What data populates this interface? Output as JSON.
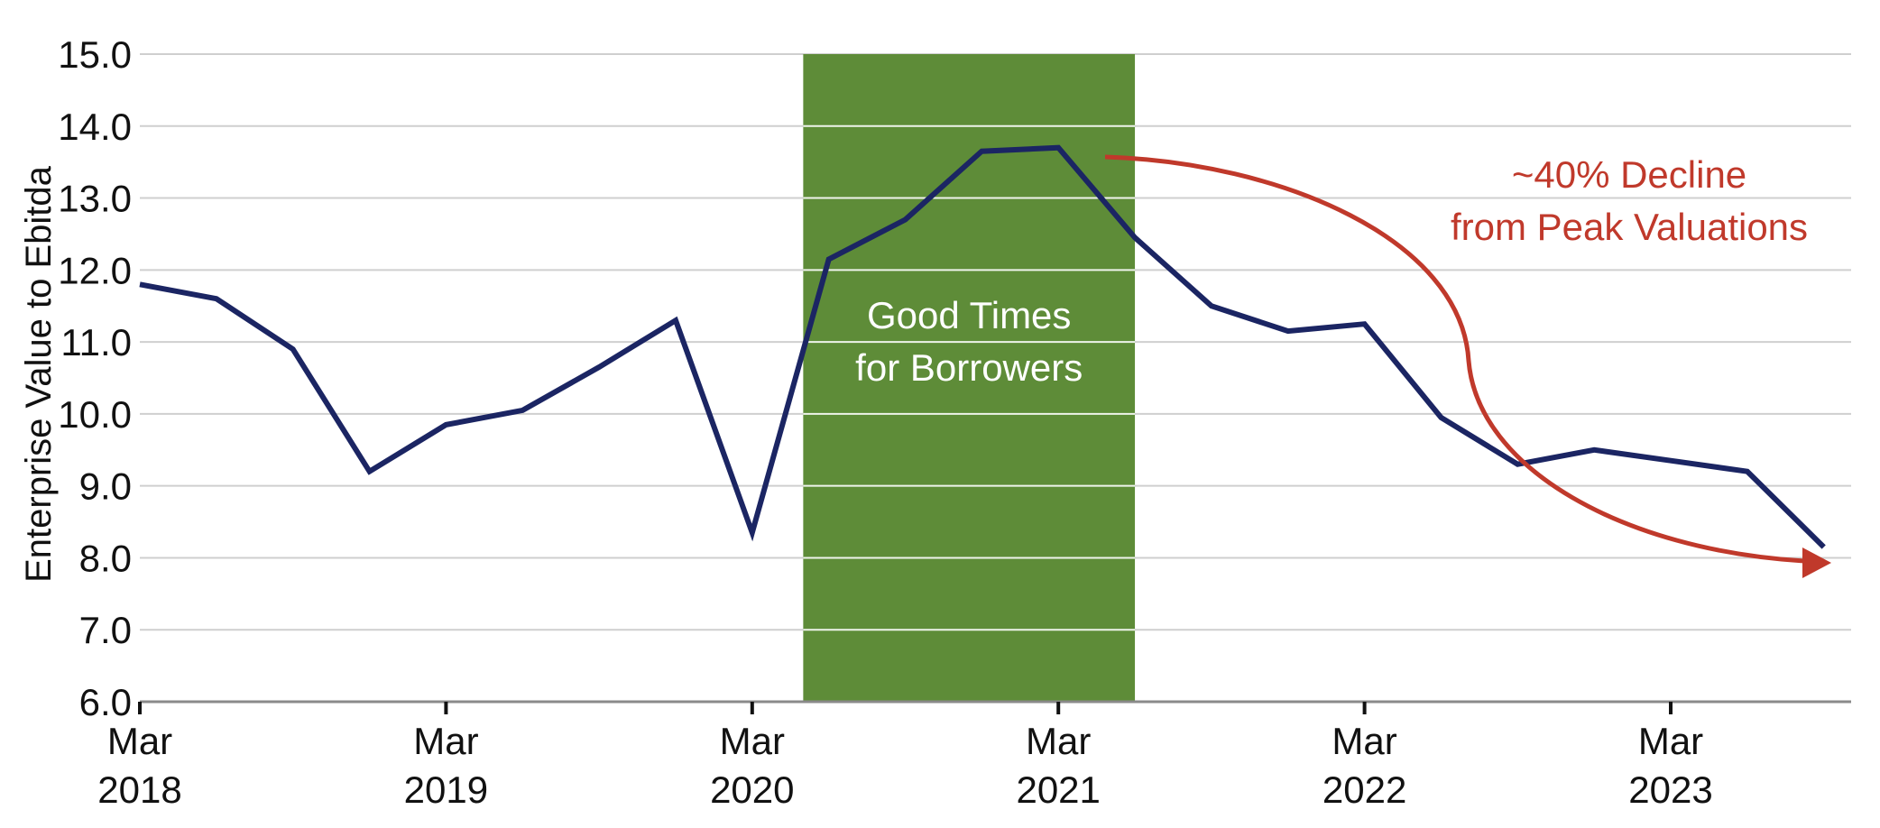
{
  "chart_data": {
    "type": "line",
    "ylabel": "Enterprise Value to Ebitda",
    "ylim": [
      6.0,
      15.0
    ],
    "y_ticks": [
      "6.0",
      "7.0",
      "8.0",
      "9.0",
      "10.0",
      "11.0",
      "12.0",
      "13.0",
      "14.0",
      "15.0"
    ],
    "x_ticks": [
      {
        "month": "Mar",
        "year": "2018"
      },
      {
        "month": "Mar",
        "year": "2019"
      },
      {
        "month": "Mar",
        "year": "2020"
      },
      {
        "month": "Mar",
        "year": "2021"
      },
      {
        "month": "Mar",
        "year": "2022"
      },
      {
        "month": "Mar",
        "year": "2023"
      }
    ],
    "x": [
      "2018-03",
      "2018-06",
      "2018-09",
      "2018-12",
      "2019-03",
      "2019-06",
      "2019-09",
      "2019-12",
      "2020-03",
      "2020-06",
      "2020-09",
      "2020-12",
      "2021-03",
      "2021-06",
      "2021-09",
      "2021-12",
      "2022-03",
      "2022-06",
      "2022-09",
      "2022-12",
      "2023-03",
      "2023-06",
      "2023-09"
    ],
    "series": [
      {
        "values": [
          11.8,
          11.6,
          10.9,
          9.2,
          9.85,
          10.05,
          10.65,
          11.3,
          8.35,
          12.15,
          12.7,
          13.65,
          13.7,
          12.45,
          11.5,
          11.15,
          11.25,
          9.95,
          9.3,
          9.5,
          9.35,
          9.2,
          8.15
        ],
        "color": "#1b2563"
      }
    ],
    "shaded_region": {
      "x_start": "2020-05",
      "x_end": "2021-06",
      "label_lines": [
        "Good Times",
        "for Borrowers"
      ],
      "color": "#5e8c38"
    },
    "annotation": {
      "label_lines": [
        "~40% Decline",
        "from Peak Valuations"
      ],
      "color": "#c0392b"
    },
    "grid": true
  }
}
